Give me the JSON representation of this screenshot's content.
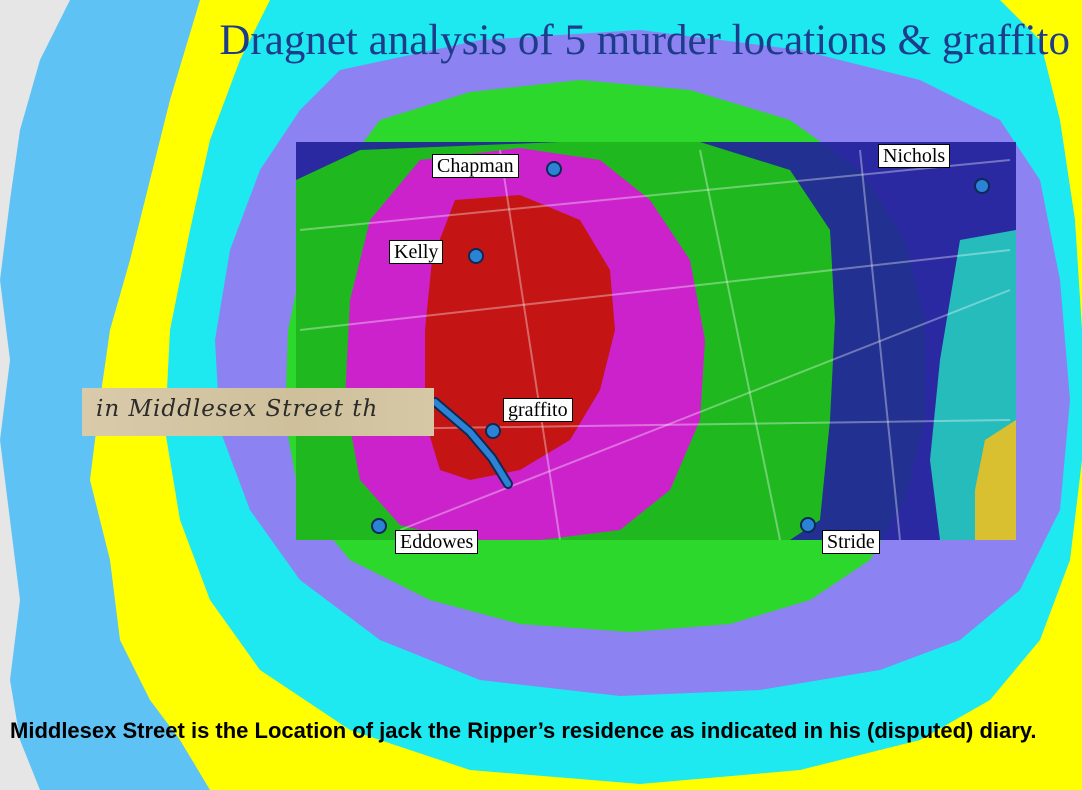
{
  "title": "Dragnet analysis of 5 murder locations & graffito",
  "locations": [
    {
      "name": "Chapman"
    },
    {
      "name": "Nichols"
    },
    {
      "name": "Kelly"
    },
    {
      "name": "graffito"
    },
    {
      "name": "Eddowes"
    },
    {
      "name": "Stride"
    }
  ],
  "diary_note": "in Middlesex Street th",
  "caption": "Middlesex Street is the Location of jack the Ripper’s residence as indicated in his (disputed) diary.",
  "colors": {
    "zone_outer_gray": "#e6e6e6",
    "zone_lightblue": "#5ec2f5",
    "zone_yellow": "#ffff00",
    "zone_cyan": "#1ee8f0",
    "zone_periwinkle": "#8c82f2",
    "zone_green": "#2bd82b",
    "zone_magenta": "#cc22cc",
    "zone_red": "#cc1111",
    "map_navy": "#22229a",
    "map_teal": "#27bcbc",
    "pin": "#2c83d6",
    "title": "#1f3c8a"
  }
}
